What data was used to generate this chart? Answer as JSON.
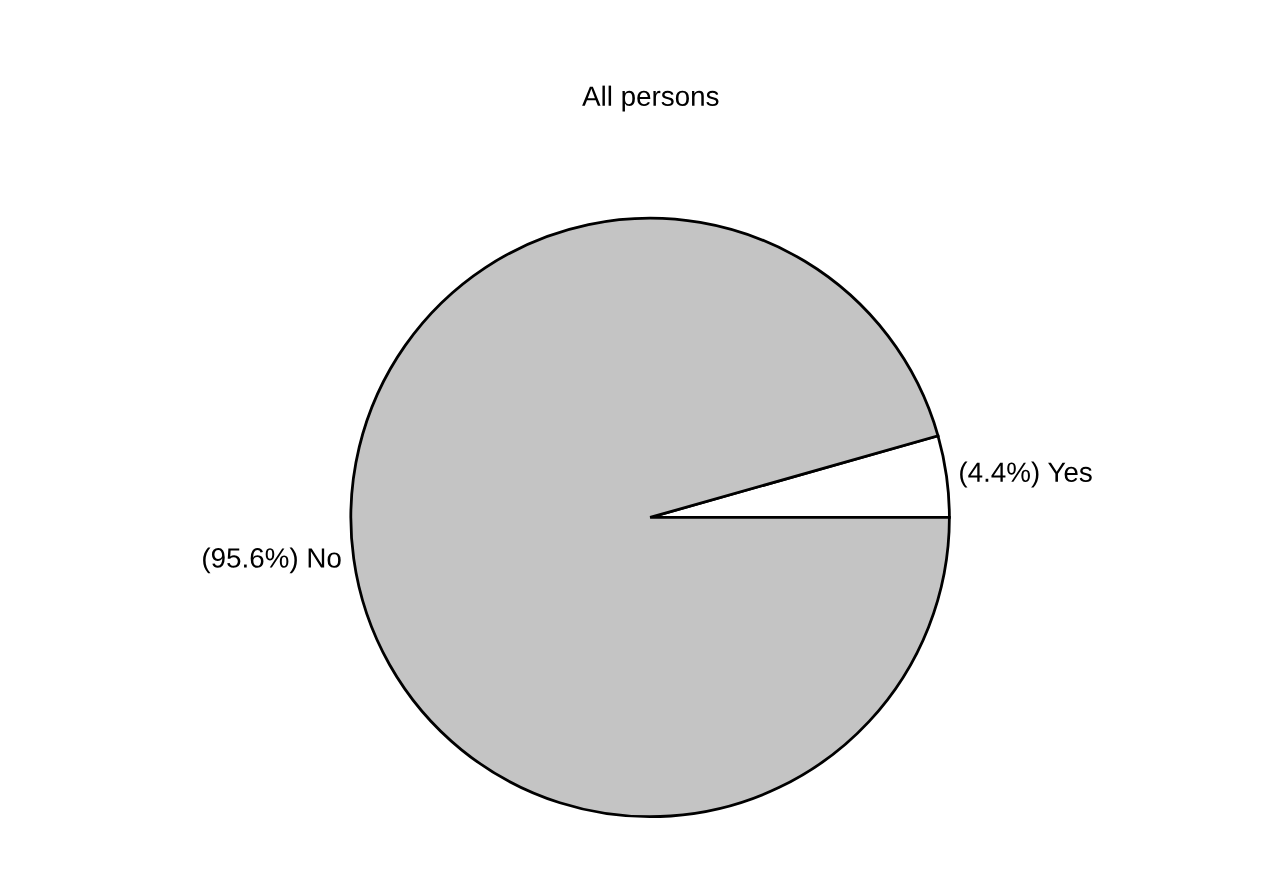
{
  "chart_data": {
    "type": "pie",
    "title": "All persons",
    "categories": [
      "Yes",
      "No"
    ],
    "values": [
      4.4,
      95.6
    ],
    "colors": [
      "#ffffff",
      "#c4c4c4"
    ],
    "value_labels": [
      "(4.4%)",
      "(95.6%)"
    ]
  }
}
